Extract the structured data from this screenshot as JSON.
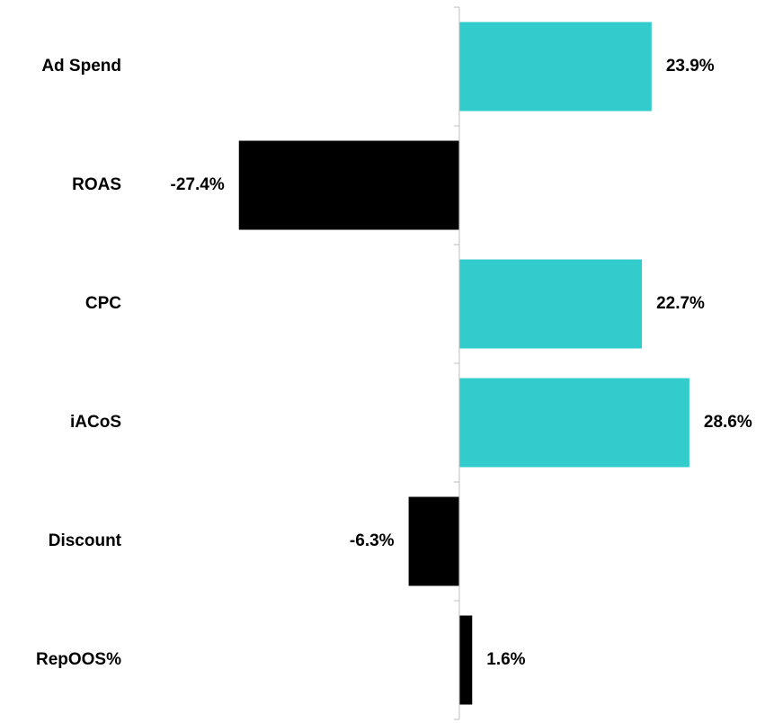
{
  "chart_data": {
    "type": "hbar",
    "categories": [
      "Ad Spend",
      "ROAS",
      "CPC",
      "iACoS",
      "Discount",
      "RepOOS%"
    ],
    "values": [
      23.9,
      -27.4,
      22.7,
      28.6,
      -6.3,
      1.6
    ],
    "value_labels": [
      "23.9%",
      "-27.4%",
      "22.7%",
      "28.6%",
      "-6.3%",
      "1.6%"
    ],
    "colors": [
      "#33cccc",
      "#000000",
      "#33cccc",
      "#33cccc",
      "#000000",
      "#000000"
    ],
    "xlim": [
      -40,
      38
    ]
  }
}
